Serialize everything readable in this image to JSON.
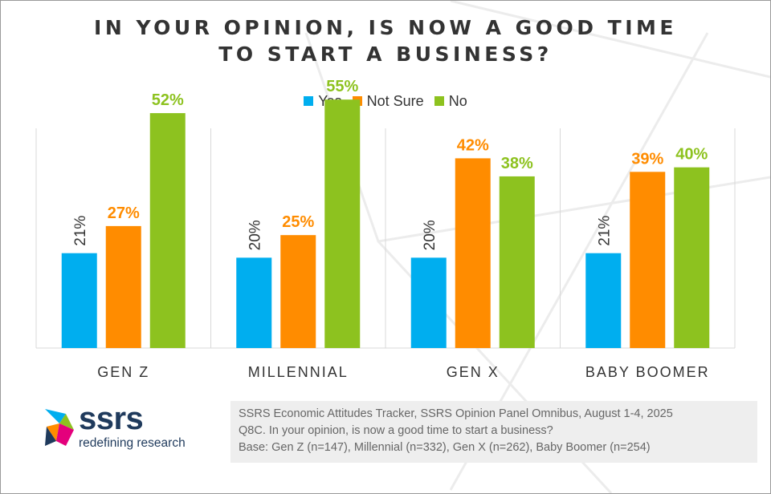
{
  "title": {
    "line1": "IN YOUR OPINION, IS NOW A GOOD TIME",
    "line2": "TO START A BUSINESS?"
  },
  "colors": {
    "yes": "#00aeef",
    "not_sure": "#ff8c00",
    "no": "#8dc21f",
    "text": "#333333",
    "grid": "#d9d9d9"
  },
  "chart_data": {
    "type": "bar",
    "title": "IN YOUR OPINION, IS NOW A GOOD TIME TO START A BUSINESS?",
    "categories": [
      "GEN Z",
      "MILLENNIAL",
      "GEN X",
      "BABY BOOMER"
    ],
    "series": [
      {
        "name": "Yes",
        "values": [
          21,
          20,
          20,
          21
        ],
        "labels": [
          "21%",
          "20%",
          "20%",
          "21%"
        ]
      },
      {
        "name": "Not Sure",
        "values": [
          27,
          25,
          42,
          39
        ],
        "labels": [
          "27%",
          "25%",
          "42%",
          "39%"
        ]
      },
      {
        "name": "No",
        "values": [
          52,
          55,
          38,
          40
        ],
        "labels": [
          "52%",
          "55%",
          "38%",
          "40%"
        ]
      }
    ],
    "ylim": [
      0,
      60
    ],
    "unit": "%",
    "legend": "top-center",
    "grid": false
  },
  "source": {
    "line1": "SSRS Economic Attitudes Tracker, SSRS Opinion Panel Omnibus, August 1-4, 2025",
    "line2": "Q8C. In your opinion, is now a good time to start a business?",
    "line3": "Base: Gen Z (n=147), Millennial (n=332), Gen X (n=262), Baby Boomer (n=254)"
  },
  "logo": {
    "wordmark": "ssrs",
    "tagline": "redefining research"
  }
}
